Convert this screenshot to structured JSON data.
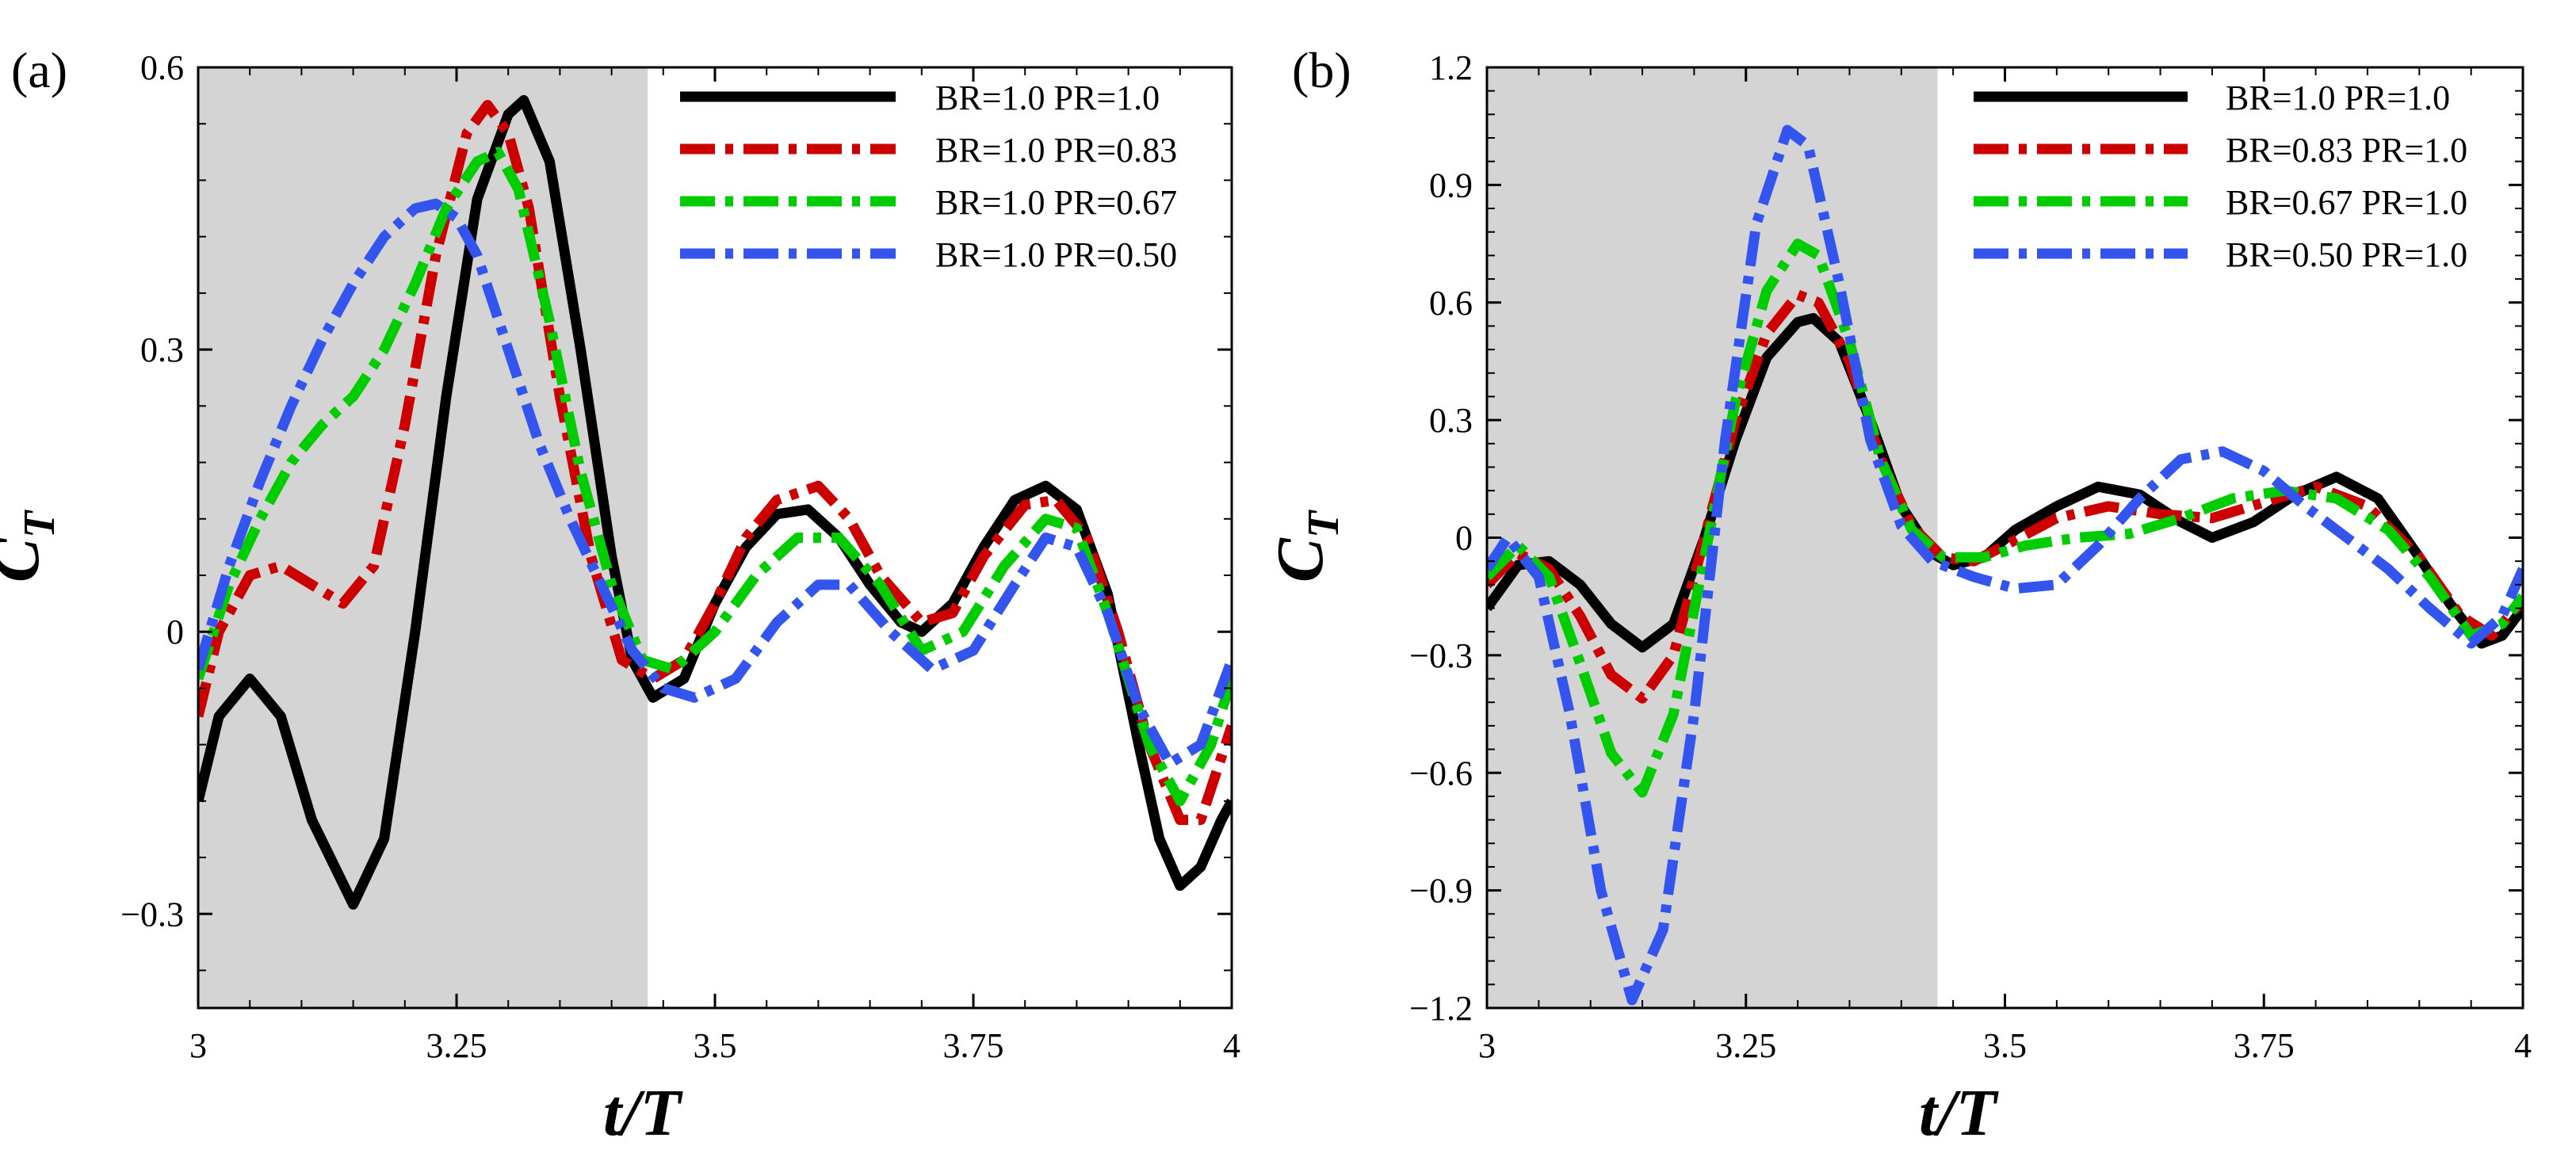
{
  "chart_data": [
    {
      "type": "line",
      "panel_label": "(a)",
      "xlabel": "t/T",
      "ylabel": "C",
      "ylabel_sub": "T",
      "xlim": [
        3,
        4
      ],
      "ylim": [
        -0.4,
        0.6
      ],
      "xticks": [
        3,
        3.25,
        3.5,
        3.75,
        4
      ],
      "xtick_labels": [
        "3",
        "3.25",
        "3.5",
        "3.75",
        "4"
      ],
      "yticks": [
        -0.3,
        0,
        0.3,
        0.6
      ],
      "ytick_labels": [
        "−0.3",
        "0",
        "0.3",
        "0.6"
      ],
      "shaded_x_range": [
        3,
        3.435
      ],
      "legend_position": "top-right",
      "series": [
        {
          "name": "BR=1.0 PR=1.0",
          "color": "#000000",
          "dash": "solid",
          "x": [
            3.0,
            3.02,
            3.05,
            3.08,
            3.11,
            3.15,
            3.18,
            3.21,
            3.24,
            3.27,
            3.3,
            3.315,
            3.34,
            3.37,
            3.4,
            3.42,
            3.44,
            3.47,
            3.5,
            3.53,
            3.56,
            3.59,
            3.62,
            3.65,
            3.68,
            3.7,
            3.73,
            3.76,
            3.79,
            3.82,
            3.85,
            3.88,
            3.91,
            3.93,
            3.95,
            3.97,
            3.99,
            4.0
          ],
          "values": [
            -0.18,
            -0.09,
            -0.05,
            -0.09,
            -0.2,
            -0.29,
            -0.22,
            0.0,
            0.25,
            0.46,
            0.55,
            0.565,
            0.5,
            0.3,
            0.08,
            -0.03,
            -0.07,
            -0.05,
            0.03,
            0.09,
            0.125,
            0.13,
            0.1,
            0.05,
            0.01,
            0.0,
            0.03,
            0.09,
            0.14,
            0.155,
            0.13,
            0.04,
            -0.12,
            -0.22,
            -0.27,
            -0.25,
            -0.2,
            -0.18
          ]
        },
        {
          "name": "BR=1.0 PR=0.83",
          "color": "#cc0000",
          "dash": "dashdot",
          "x": [
            3.0,
            3.02,
            3.05,
            3.08,
            3.11,
            3.14,
            3.17,
            3.2,
            3.23,
            3.26,
            3.28,
            3.3,
            3.32,
            3.35,
            3.38,
            3.41,
            3.44,
            3.47,
            3.5,
            3.53,
            3.56,
            3.6,
            3.63,
            3.66,
            3.7,
            3.73,
            3.76,
            3.8,
            3.83,
            3.86,
            3.89,
            3.92,
            3.95,
            3.97,
            4.0
          ],
          "values": [
            -0.09,
            0.0,
            0.06,
            0.07,
            0.05,
            0.03,
            0.07,
            0.22,
            0.4,
            0.53,
            0.56,
            0.53,
            0.45,
            0.25,
            0.08,
            -0.03,
            -0.05,
            -0.03,
            0.03,
            0.1,
            0.14,
            0.155,
            0.12,
            0.06,
            0.01,
            0.02,
            0.08,
            0.135,
            0.14,
            0.1,
            0.0,
            -0.12,
            -0.2,
            -0.2,
            -0.1
          ]
        },
        {
          "name": "BR=1.0 PR=0.67",
          "color": "#00cc00",
          "dash": "dashdot",
          "x": [
            3.0,
            3.03,
            3.06,
            3.09,
            3.12,
            3.15,
            3.18,
            3.21,
            3.24,
            3.27,
            3.29,
            3.31,
            3.34,
            3.37,
            3.4,
            3.43,
            3.46,
            3.5,
            3.54,
            3.58,
            3.62,
            3.66,
            3.7,
            3.74,
            3.78,
            3.82,
            3.85,
            3.88,
            3.92,
            3.95,
            3.98,
            4.0
          ],
          "values": [
            -0.05,
            0.05,
            0.12,
            0.18,
            0.22,
            0.25,
            0.3,
            0.37,
            0.45,
            0.5,
            0.51,
            0.47,
            0.33,
            0.17,
            0.05,
            -0.03,
            -0.04,
            0.0,
            0.06,
            0.1,
            0.1,
            0.05,
            -0.02,
            0.0,
            0.07,
            0.12,
            0.11,
            0.02,
            -0.12,
            -0.18,
            -0.12,
            -0.05
          ]
        },
        {
          "name": "BR=1.0 PR=0.50",
          "color": "#3355ee",
          "dash": "dashdot",
          "x": [
            3.0,
            3.03,
            3.06,
            3.09,
            3.12,
            3.15,
            3.18,
            3.21,
            3.23,
            3.25,
            3.27,
            3.3,
            3.33,
            3.36,
            3.39,
            3.42,
            3.45,
            3.48,
            3.52,
            3.56,
            3.6,
            3.63,
            3.67,
            3.71,
            3.75,
            3.79,
            3.82,
            3.85,
            3.88,
            3.91,
            3.94,
            3.97,
            4.0
          ],
          "values": [
            -0.04,
            0.07,
            0.16,
            0.24,
            0.31,
            0.37,
            0.42,
            0.45,
            0.455,
            0.44,
            0.4,
            0.3,
            0.2,
            0.12,
            0.05,
            -0.02,
            -0.06,
            -0.07,
            -0.05,
            0.01,
            0.05,
            0.05,
            0.0,
            -0.04,
            -0.02,
            0.05,
            0.1,
            0.09,
            0.02,
            -0.08,
            -0.14,
            -0.12,
            -0.03
          ]
        }
      ]
    },
    {
      "type": "line",
      "panel_label": "(b)",
      "xlabel": "t/T",
      "ylabel": "C",
      "ylabel_sub": "T",
      "xlim": [
        3,
        4
      ],
      "ylim": [
        -1.2,
        1.2
      ],
      "xticks": [
        3,
        3.25,
        3.5,
        3.75,
        4
      ],
      "xtick_labels": [
        "3",
        "3.25",
        "3.5",
        "3.75",
        "4"
      ],
      "yticks": [
        -1.2,
        -0.9,
        -0.6,
        -0.3,
        0,
        0.3,
        0.6,
        0.9,
        1.2
      ],
      "ytick_labels": [
        "−1.2",
        "−0.9",
        "−0.6",
        "−0.3",
        "0",
        "0.3",
        "0.6",
        "0.9",
        "1.2"
      ],
      "shaded_x_range": [
        3,
        3.435
      ],
      "legend_position": "top-right",
      "series": [
        {
          "name": "BR=1.0 PR=1.0",
          "color": "#000000",
          "dash": "solid",
          "x": [
            3.0,
            3.03,
            3.06,
            3.09,
            3.12,
            3.15,
            3.18,
            3.21,
            3.24,
            3.27,
            3.3,
            3.315,
            3.34,
            3.37,
            3.4,
            3.43,
            3.45,
            3.48,
            3.51,
            3.55,
            3.59,
            3.63,
            3.67,
            3.7,
            3.74,
            3.78,
            3.82,
            3.86,
            3.9,
            3.93,
            3.96,
            3.98,
            4.0
          ],
          "values": [
            -0.18,
            -0.07,
            -0.06,
            -0.12,
            -0.22,
            -0.28,
            -0.22,
            0.0,
            0.25,
            0.46,
            0.55,
            0.56,
            0.5,
            0.3,
            0.08,
            -0.04,
            -0.07,
            -0.05,
            0.02,
            0.08,
            0.13,
            0.11,
            0.04,
            0.0,
            0.04,
            0.11,
            0.155,
            0.1,
            -0.05,
            -0.17,
            -0.27,
            -0.25,
            -0.18
          ]
        },
        {
          "name": "BR=0.83 PR=1.0",
          "color": "#cc0000",
          "dash": "dashdot",
          "x": [
            3.0,
            3.03,
            3.06,
            3.09,
            3.12,
            3.15,
            3.18,
            3.21,
            3.24,
            3.27,
            3.3,
            3.32,
            3.35,
            3.38,
            3.41,
            3.44,
            3.47,
            3.5,
            3.55,
            3.6,
            3.65,
            3.7,
            3.75,
            3.8,
            3.85,
            3.9,
            3.94,
            3.97,
            4.0
          ],
          "values": [
            -0.12,
            -0.04,
            -0.08,
            -0.2,
            -0.35,
            -0.41,
            -0.3,
            0.0,
            0.3,
            0.52,
            0.62,
            0.6,
            0.45,
            0.2,
            0.03,
            -0.05,
            -0.06,
            -0.02,
            0.05,
            0.08,
            0.06,
            0.05,
            0.09,
            0.13,
            0.08,
            -0.05,
            -0.2,
            -0.25,
            -0.16
          ]
        },
        {
          "name": "BR=0.67 PR=1.0",
          "color": "#00cc00",
          "dash": "dashdot",
          "x": [
            3.0,
            3.03,
            3.06,
            3.09,
            3.12,
            3.15,
            3.18,
            3.21,
            3.24,
            3.27,
            3.3,
            3.32,
            3.35,
            3.38,
            3.41,
            3.44,
            3.48,
            3.52,
            3.57,
            3.62,
            3.67,
            3.72,
            3.77,
            3.82,
            3.87,
            3.91,
            3.95,
            3.98,
            4.0
          ],
          "values": [
            -0.1,
            -0.02,
            -0.1,
            -0.32,
            -0.55,
            -0.65,
            -0.45,
            -0.05,
            0.35,
            0.63,
            0.75,
            0.72,
            0.5,
            0.2,
            0.02,
            -0.05,
            -0.05,
            -0.02,
            0.0,
            0.01,
            0.05,
            0.1,
            0.12,
            0.1,
            0.02,
            -0.1,
            -0.25,
            -0.22,
            -0.15
          ]
        },
        {
          "name": "BR=0.50 PR=1.0",
          "color": "#3355ee",
          "dash": "dashdot",
          "x": [
            3.0,
            3.02,
            3.05,
            3.08,
            3.11,
            3.14,
            3.17,
            3.2,
            3.23,
            3.26,
            3.29,
            3.31,
            3.34,
            3.37,
            3.4,
            3.43,
            3.47,
            3.51,
            3.55,
            3.59,
            3.63,
            3.67,
            3.71,
            3.75,
            3.79,
            3.83,
            3.87,
            3.91,
            3.95,
            3.98,
            4.0
          ],
          "values": [
            -0.08,
            0.0,
            -0.1,
            -0.45,
            -0.9,
            -1.18,
            -1.0,
            -0.45,
            0.25,
            0.8,
            1.04,
            1.0,
            0.65,
            0.25,
            0.03,
            -0.06,
            -0.1,
            -0.13,
            -0.12,
            -0.02,
            0.1,
            0.2,
            0.22,
            0.17,
            0.08,
            0.0,
            -0.08,
            -0.18,
            -0.27,
            -0.2,
            -0.08
          ]
        }
      ]
    }
  ]
}
